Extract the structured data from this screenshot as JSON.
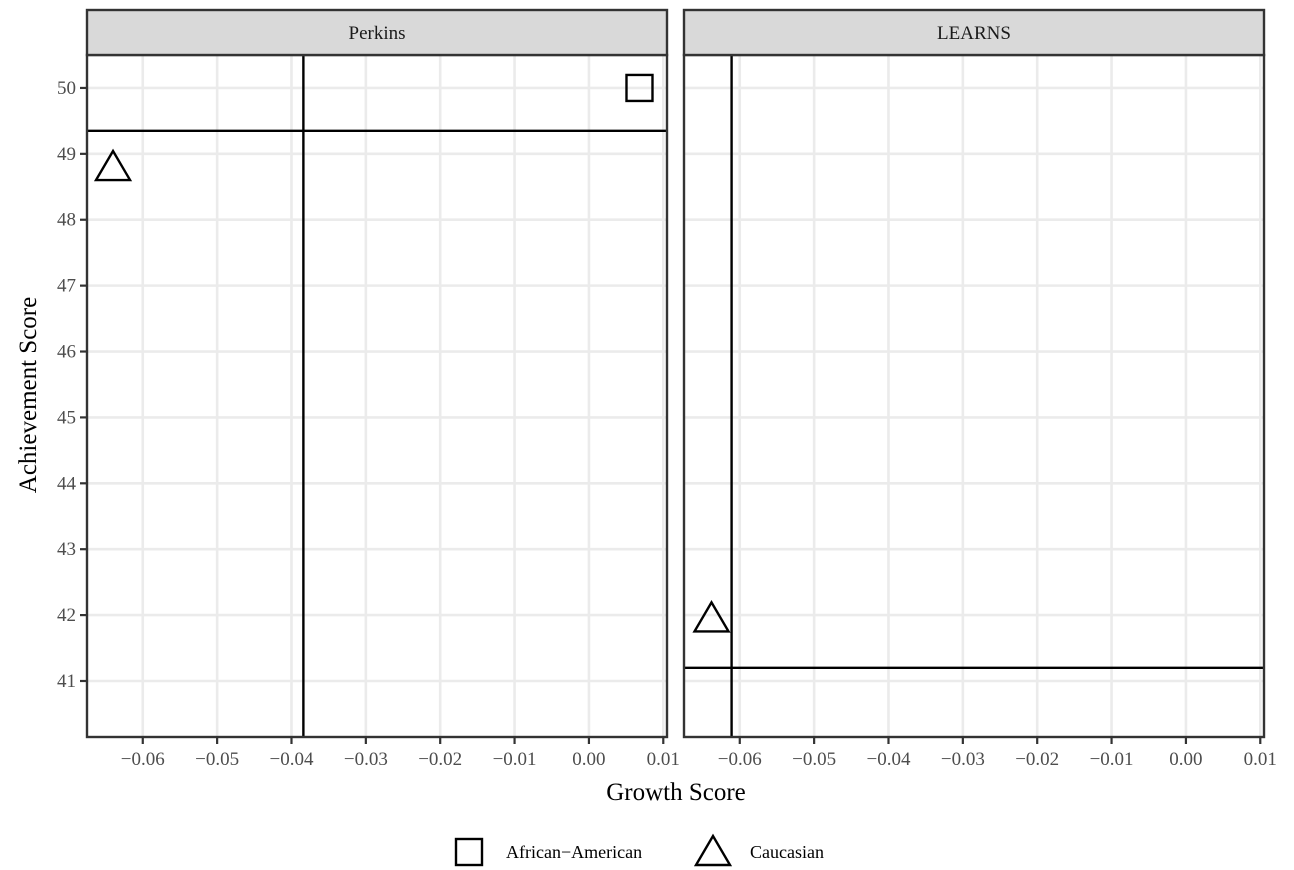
{
  "chart_data": {
    "type": "scatter",
    "xlabel": "Growth Score",
    "ylabel": "Achievement Score",
    "xlim": [
      -0.0675,
      0.0105
    ],
    "ylim": [
      40.15,
      50.5
    ],
    "x_ticks": [
      -0.06,
      -0.05,
      -0.04,
      -0.03,
      -0.02,
      -0.01,
      0.0,
      0.01
    ],
    "x_tick_labels": [
      "−0.06",
      "−0.05",
      "−0.04",
      "−0.03",
      "−0.02",
      "−0.01",
      "0.00",
      "0.01"
    ],
    "y_ticks": [
      41,
      42,
      43,
      44,
      45,
      46,
      47,
      48,
      49,
      50
    ],
    "y_tick_labels": [
      "41",
      "42",
      "43",
      "44",
      "45",
      "46",
      "47",
      "48",
      "49",
      "50"
    ],
    "grid": true,
    "legend_position": "bottom",
    "legend": [
      {
        "shape": "square",
        "label": "African−American"
      },
      {
        "shape": "triangle",
        "label": "Caucasian"
      }
    ],
    "panels": [
      {
        "title": "Perkins",
        "vline": -0.0384,
        "hline": 49.35,
        "points": [
          {
            "group": "African−American",
            "shape": "square",
            "x": 0.0068,
            "y": 50.0
          },
          {
            "group": "Caucasian",
            "shape": "triangle",
            "x": -0.064,
            "y": 48.8
          }
        ]
      },
      {
        "title": "LEARNS",
        "vline": -0.0611,
        "hline": 41.2,
        "points": [
          {
            "group": "Caucasian",
            "shape": "triangle",
            "x": -0.0638,
            "y": 41.95
          }
        ]
      }
    ]
  }
}
